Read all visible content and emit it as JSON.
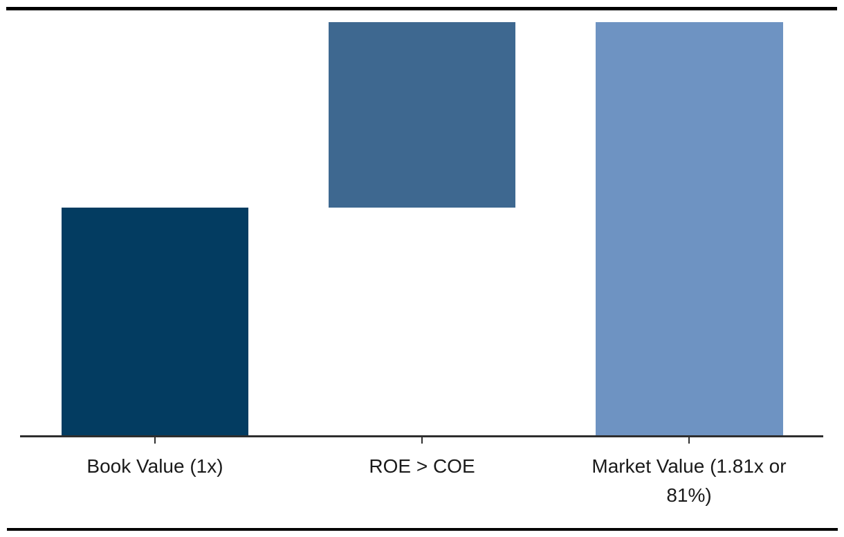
{
  "chart_data": {
    "type": "bar",
    "subtype": "waterfall",
    "title": "",
    "xlabel": "",
    "ylabel": "",
    "grid": false,
    "legend": null,
    "ylim": [
      0,
      1.81
    ],
    "categories": [
      "Book Value (1x)",
      "ROE > COE",
      "Market Value (1.81x or 81%)"
    ],
    "bars": [
      {
        "label": "Book Value (1x)",
        "start": 0,
        "end": 1.0,
        "color": "#033C61"
      },
      {
        "label": "ROE > COE",
        "start": 1.0,
        "end": 1.81,
        "color": "#3E6890"
      },
      {
        "label": "Market Value (1.81x or 81%)",
        "start": 0,
        "end": 1.81,
        "color": "#6E93C2"
      }
    ],
    "colors": {
      "bar_book_value": "#033C61",
      "bar_roe_coe": "#3E6890",
      "bar_market_value": "#6E93C2",
      "axis": "#2e2e2e",
      "frame_rules": "#000000",
      "label_text": "#1a1a1a",
      "background": "#ffffff"
    }
  }
}
